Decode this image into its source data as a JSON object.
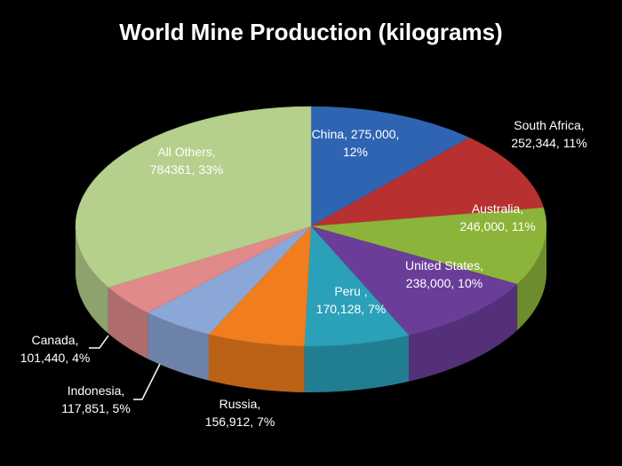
{
  "chart_data": {
    "type": "pie3d",
    "title": "World Mine Production (kilograms)",
    "values": [
      275000,
      252344,
      246000,
      238000,
      170128,
      156912,
      117851,
      101440,
      784361
    ],
    "value_labels": [
      [
        "China, 275,000,",
        "12%"
      ],
      [
        "South Africa,",
        "252,344, 11%"
      ],
      [
        "Australia,",
        "246,000, 11%"
      ],
      [
        "United States,",
        "238,000, 10%"
      ],
      [
        "Peru       ,",
        "170,128, 7%"
      ],
      [
        "Russia,",
        "156,912, 7%"
      ],
      [
        "Indonesia,",
        "117,851, 5%"
      ],
      [
        "Canada,",
        "101,440, 4%"
      ],
      [
        "All Others,",
        "784361, 33%"
      ]
    ],
    "colors": [
      "#2f64b2",
      "#b83030",
      "#8cb43a",
      "#6a3e98",
      "#2aa1b9",
      "#f07e1e",
      "#8aa7d8",
      "#e08a8a",
      "#b5d08c"
    ]
  }
}
